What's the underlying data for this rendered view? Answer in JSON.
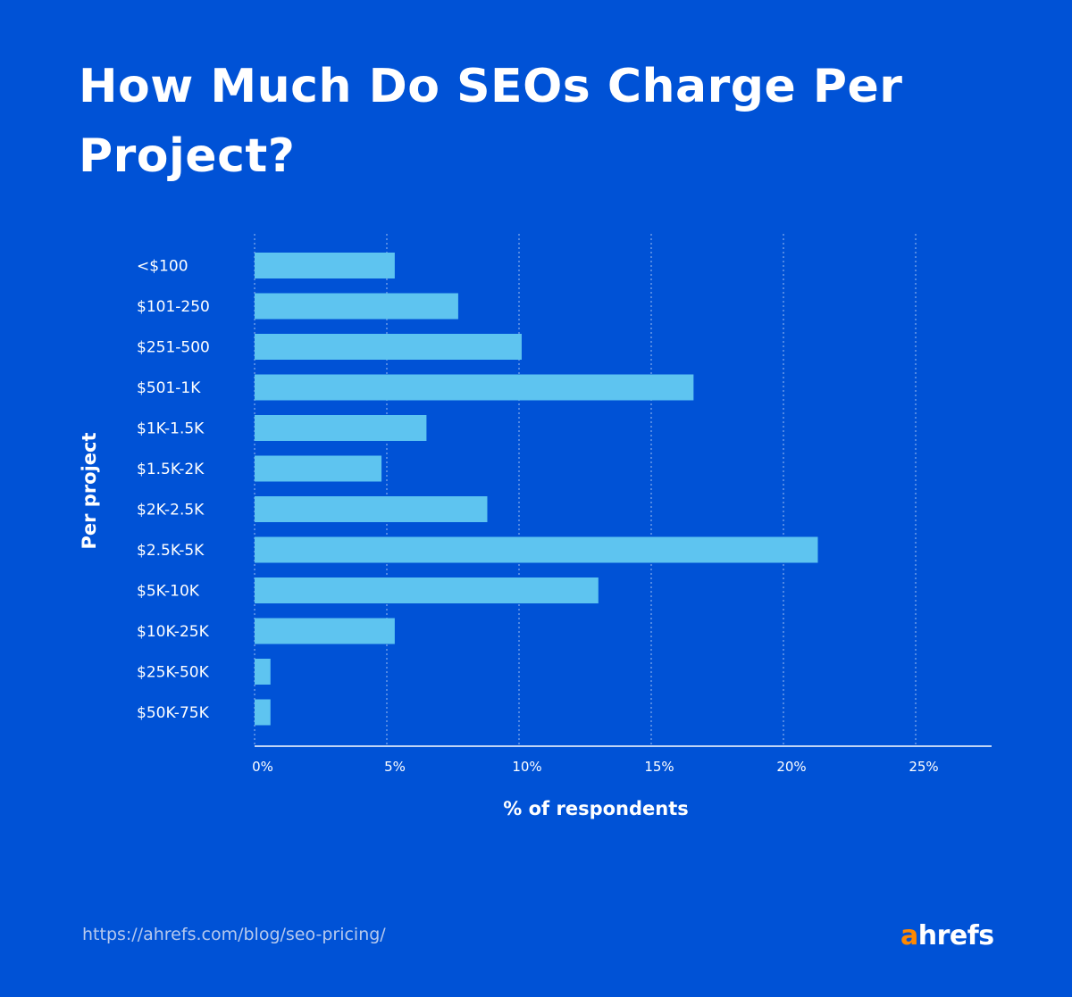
{
  "title": "How Much Do SEOs Charge Per Project?",
  "footer": {
    "url": "https://ahrefs.com/blog/seo-pricing/",
    "logo_a": "a",
    "logo_rest": "hrefs"
  },
  "colors": {
    "background": "#0052d6",
    "bar": "#5ec4f0",
    "logo_accent": "#ff8800"
  },
  "chart_data": {
    "type": "bar",
    "orientation": "horizontal",
    "categories": [
      "<$100",
      "$101-250",
      "$251-500",
      "$501-1K",
      "$1K-1.5K",
      "$1.5K-2K",
      "$2K-2.5K",
      "$2.5K-5K",
      "$5K-10K",
      "$10K-25K",
      "$25K-50K",
      "$50K-75K"
    ],
    "values": [
      5.3,
      7.7,
      10.1,
      16.6,
      6.5,
      4.8,
      8.8,
      21.3,
      13.0,
      5.3,
      0.6,
      0.6
    ],
    "xlabel": "% of respondents",
    "ylabel": "Per project",
    "xlim": [
      0,
      28
    ],
    "xticks": [
      0,
      5,
      10,
      15,
      20,
      25
    ],
    "xtick_labels": [
      "0%",
      "5%",
      "10%",
      "15%",
      "20%",
      "25%"
    ],
    "grid": "vertical dotted"
  }
}
